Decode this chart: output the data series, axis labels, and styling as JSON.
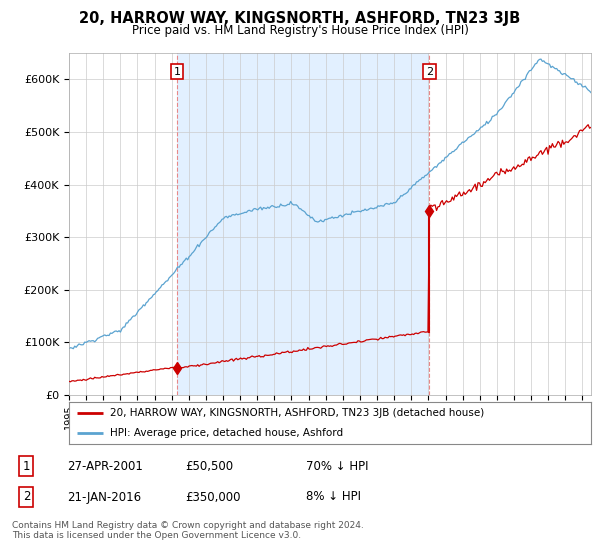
{
  "title": "20, HARROW WAY, KINGSNORTH, ASHFORD, TN23 3JB",
  "subtitle": "Price paid vs. HM Land Registry's House Price Index (HPI)",
  "ylabel_ticks": [
    "£0",
    "£100K",
    "£200K",
    "£300K",
    "£400K",
    "£500K",
    "£600K"
  ],
  "ytick_values": [
    0,
    100000,
    200000,
    300000,
    400000,
    500000,
    600000
  ],
  "ylim": [
    0,
    650000
  ],
  "xlim_start": 1995.0,
  "xlim_end": 2025.5,
  "hpi_color": "#5ba3d0",
  "hpi_fill_color": "#ddeeff",
  "price_color": "#cc0000",
  "purchase1_year": 2001.32,
  "purchase1_price": 50500,
  "purchase2_year": 2016.05,
  "purchase2_price": 350000,
  "legend_label1": "20, HARROW WAY, KINGSNORTH, ASHFORD, TN23 3JB (detached house)",
  "legend_label2": "HPI: Average price, detached house, Ashford",
  "table_row1": [
    "1",
    "27-APR-2001",
    "£50,500",
    "70% ↓ HPI"
  ],
  "table_row2": [
    "2",
    "21-JAN-2016",
    "£350,000",
    "8% ↓ HPI"
  ],
  "footer": "Contains HM Land Registry data © Crown copyright and database right 2024.\nThis data is licensed under the Open Government Licence v3.0.",
  "background_color": "#ffffff",
  "grid_color": "#cccccc"
}
